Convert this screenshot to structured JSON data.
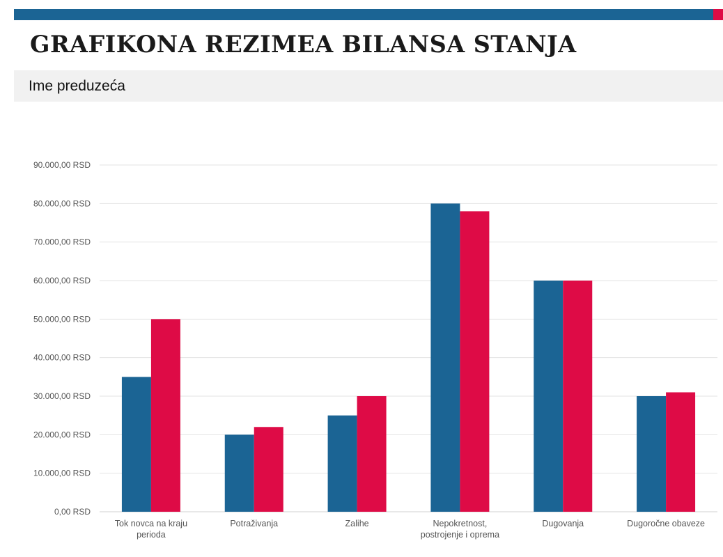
{
  "header": {
    "title": "GRAFIKONA REZIMEA BILANSA STANJA",
    "company_name": "Ime preduzeća"
  },
  "colors": {
    "series1": "#1b6494",
    "series2": "#de0b46",
    "accent_bar": "#1b6494",
    "accent_bar_end": "#de0b46"
  },
  "chart_data": {
    "type": "bar",
    "categories": [
      "Tok novca na kraju perioda",
      "Potraživanja",
      "Zalihe",
      "Nepokretnost, postrojenje i oprema",
      "Dugovanja",
      "Dugoročne obaveze"
    ],
    "category_lines": [
      [
        "Tok novca na kraju",
        "perioda"
      ],
      [
        "Potraživanja"
      ],
      [
        "Zalihe"
      ],
      [
        "Nepokretnost,",
        "postrojenje i oprema"
      ],
      [
        "Dugovanja"
      ],
      [
        "Dugoročne obaveze"
      ]
    ],
    "series": [
      {
        "values": [
          35000,
          20000,
          25000,
          80000,
          60000,
          30000
        ],
        "color": "#1b6494"
      },
      {
        "values": [
          50000,
          22000,
          30000,
          78000,
          60000,
          31000
        ],
        "color": "#de0b46"
      }
    ],
    "ylim": [
      0,
      90000
    ],
    "yticks": [
      0,
      10000,
      20000,
      30000,
      40000,
      50000,
      60000,
      70000,
      80000,
      90000
    ],
    "ytick_labels": [
      "0,00 RSD",
      "10.000,00 RSD",
      "20.000,00 RSD",
      "30.000,00 RSD",
      "40.000,00 RSD",
      "50.000,00 RSD",
      "60.000,00 RSD",
      "70.000,00 RSD",
      "80.000,00 RSD",
      "90.000,00 RSD"
    ],
    "grid": true,
    "legend": "none",
    "title": "",
    "xlabel": "",
    "ylabel": ""
  }
}
